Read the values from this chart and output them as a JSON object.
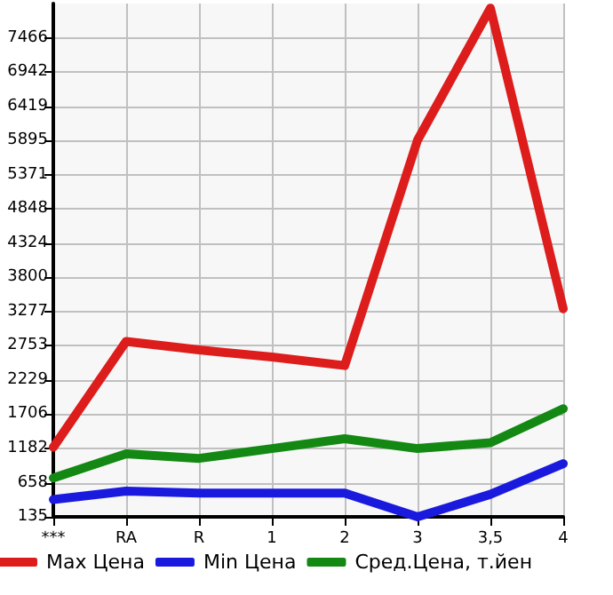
{
  "chart_data": {
    "type": "line",
    "categories": [
      "***",
      "RA",
      "R",
      "1",
      "2",
      "3",
      "3,5",
      "4"
    ],
    "series": [
      {
        "name": "Max Цена",
        "color": "#dd1c1c",
        "values": [
          1200,
          2820,
          2690,
          2580,
          2450,
          5900,
          7920,
          3320
        ]
      },
      {
        "name": "Min Цена",
        "color": "#1a1adf",
        "values": [
          400,
          530,
          500,
          500,
          500,
          135,
          480,
          950
        ]
      },
      {
        "name": "Сред.Цена, т.йен",
        "color": "#138813",
        "values": [
          730,
          1100,
          1030,
          1180,
          1330,
          1180,
          1270,
          1790
        ]
      }
    ],
    "ylim": [
      135,
      7990
    ],
    "yticks": [
      135,
      658,
      1182,
      1706,
      2229,
      2753,
      3277,
      3800,
      4324,
      4848,
      5371,
      5895,
      6419,
      6942,
      7466
    ],
    "grid": true,
    "legend": "bottom"
  }
}
